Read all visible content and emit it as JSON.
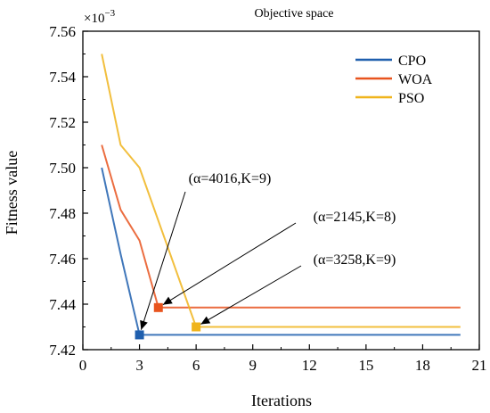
{
  "chart_data": {
    "type": "line",
    "title": "Objective space",
    "xlabel": "Iterations",
    "ylabel": "Fitness value",
    "y_multiplier_label": "×10",
    "y_multiplier_exponent": "−3",
    "xlim": [
      0,
      21
    ],
    "ylim": [
      7.42,
      7.56
    ],
    "xticks": [
      "0",
      "3",
      "6",
      "9",
      "12",
      "15",
      "18",
      "21"
    ],
    "yticks": [
      "7.42",
      "7.44",
      "7.46",
      "7.48",
      "7.50",
      "7.52",
      "7.54",
      "7.56"
    ],
    "grid": false,
    "legend_position": "top-right",
    "series": [
      {
        "name": "CPO",
        "color": "#1f5fae",
        "x": [
          1,
          2,
          3,
          20
        ],
        "y": [
          7.5,
          7.462,
          7.4265,
          7.4265
        ],
        "marker_at": [
          3,
          7.4265
        ]
      },
      {
        "name": "WOA",
        "color": "#e8541e",
        "x": [
          1,
          2,
          3,
          4,
          20
        ],
        "y": [
          7.51,
          7.4815,
          7.468,
          7.4385,
          7.4385
        ],
        "marker_at": [
          4,
          7.4385
        ]
      },
      {
        "name": "PSO",
        "color": "#f0b41c",
        "x": [
          1,
          2,
          3,
          6,
          20
        ],
        "y": [
          7.55,
          7.51,
          7.5,
          7.43,
          7.43
        ],
        "marker_at": [
          6,
          7.43
        ]
      }
    ],
    "annotations": [
      {
        "text": "(α=4016,K=9)",
        "series": "CPO"
      },
      {
        "text": "(α=2145,K=8)",
        "series": "WOA"
      },
      {
        "text": "(α=3258,K=9)",
        "series": "PSO"
      }
    ]
  }
}
